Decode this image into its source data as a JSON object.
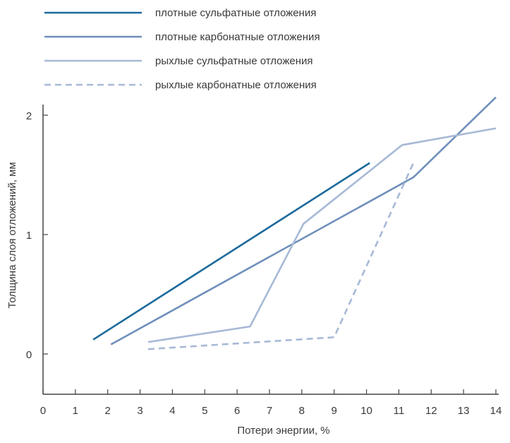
{
  "chart_data": {
    "type": "line",
    "xlabel": "Потери энергии, %",
    "ylabel": "Толщина слоя отложений, мм",
    "xlim": [
      0,
      14
    ],
    "ylim": [
      -0.35,
      2.1
    ],
    "xticks": [
      0,
      1,
      2,
      3,
      4,
      5,
      6,
      7,
      8,
      9,
      10,
      11,
      12,
      13,
      14
    ],
    "yticks": [
      0,
      1,
      2
    ],
    "grid": false,
    "legend_position": "top-left",
    "series": [
      {
        "name": "плотные сульфатные отложения",
        "color": "#1b6a9c",
        "dash": "solid",
        "points": [
          [
            1.55,
            0.12
          ],
          [
            10.1,
            1.6
          ]
        ]
      },
      {
        "name": "плотные карбонатные отложения",
        "color": "#6f8fbb",
        "dash": "solid",
        "points": [
          [
            2.1,
            0.08
          ],
          [
            11.45,
            1.48
          ],
          [
            14.0,
            2.15
          ]
        ]
      },
      {
        "name": "рыхлые сульфатные отложения",
        "color": "#a7b9d6",
        "dash": "solid",
        "points": [
          [
            3.25,
            0.1
          ],
          [
            6.4,
            0.23
          ],
          [
            8.05,
            1.09
          ],
          [
            11.1,
            1.75
          ],
          [
            14.0,
            1.89
          ]
        ]
      },
      {
        "name": "рыхлые карбонатные отложения",
        "color": "#a7b9d6",
        "dash": "dashed",
        "points": [
          [
            3.25,
            0.04
          ],
          [
            9.0,
            0.14
          ],
          [
            11.45,
            1.6
          ]
        ]
      }
    ]
  }
}
